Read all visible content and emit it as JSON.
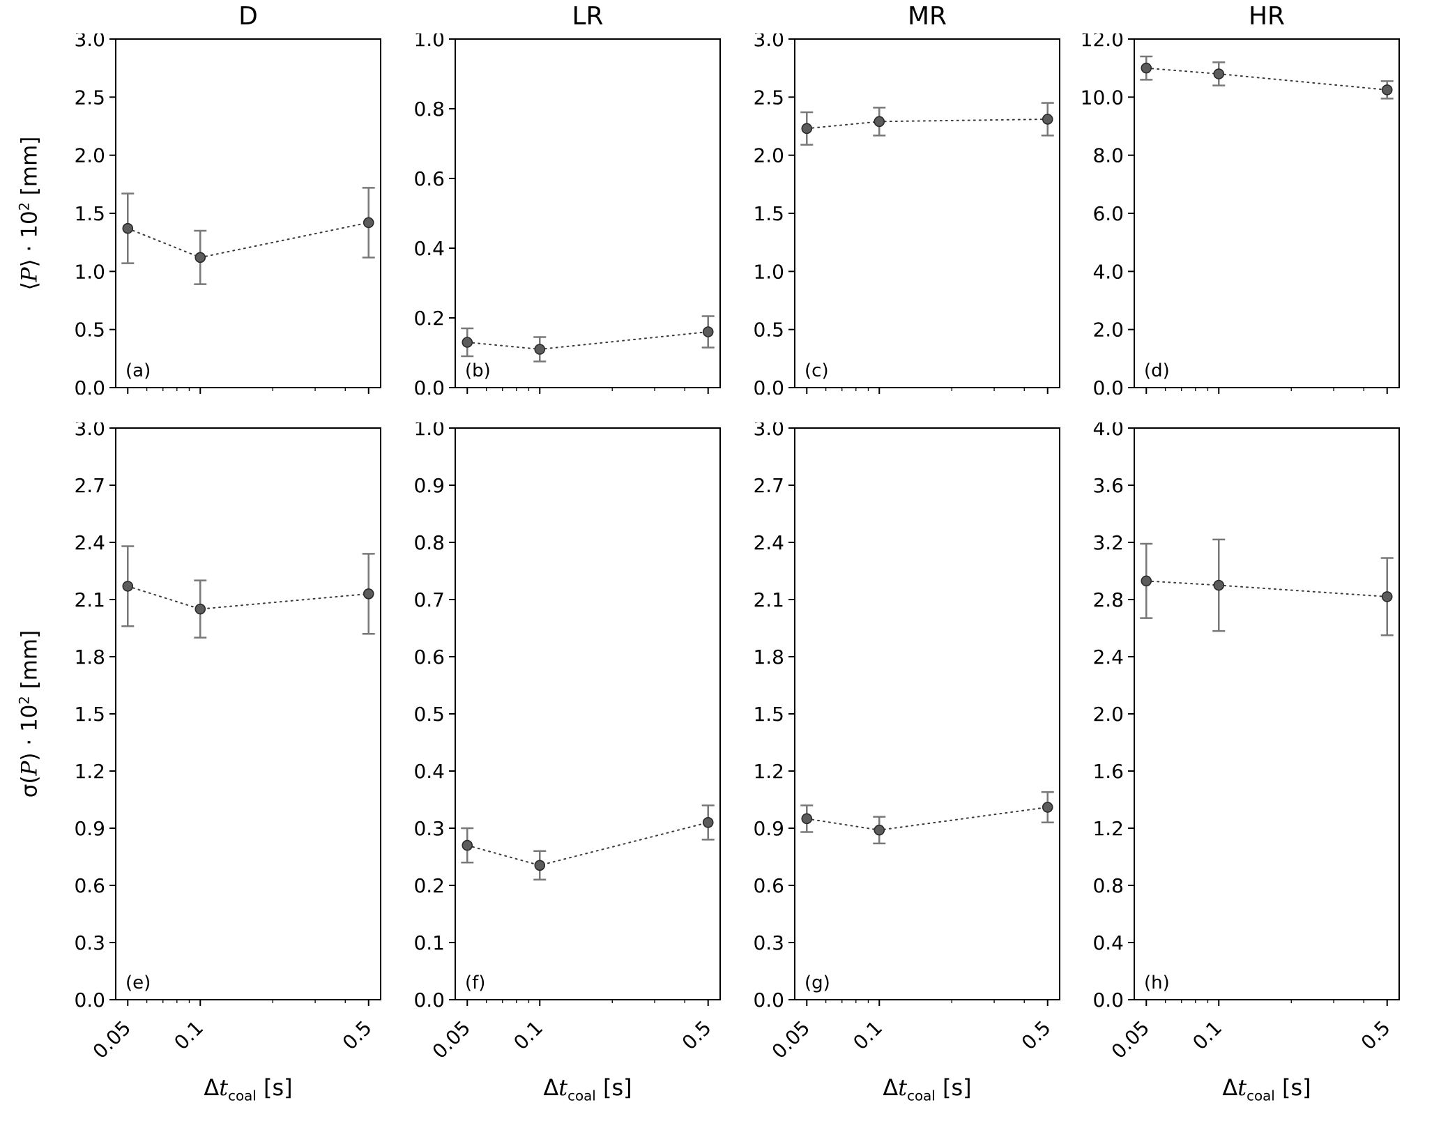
{
  "figure": {
    "columns": [
      "D",
      "LR",
      "MR",
      "HR"
    ],
    "ylabel_top": {
      "open": "⟨",
      "var": "P",
      "mid": "⟩ · 10",
      "sup": "2",
      "unit": " [mm]"
    },
    "ylabel_bottom": {
      "fn": "σ(",
      "var": "P",
      "mid": ") · 10",
      "sup": "2",
      "unit": " [mm]"
    },
    "xlabel": {
      "delta": "Δ",
      "var": "t",
      "sub": "coal",
      "unit": " [s]"
    }
  },
  "chart_data": [
    {
      "panel": "(a)",
      "title": "D",
      "row": "top",
      "type": "scatter",
      "xlabel": "Δt_coal [s]",
      "ylabel": "⟨P⟩·10² [mm]",
      "xscale": "log",
      "x": [
        0.05,
        0.1,
        0.5
      ],
      "xtick_labels": [
        "0.05",
        "0.1",
        "0.5"
      ],
      "y": [
        1.37,
        1.12,
        1.42
      ],
      "yerr": [
        0.3,
        0.23,
        0.3
      ],
      "ylim": [
        0,
        3.0
      ],
      "ytick_labels": [
        "0.0",
        "0.5",
        "1.0",
        "1.5",
        "2.0",
        "2.5",
        "3.0"
      ]
    },
    {
      "panel": "(b)",
      "title": "LR",
      "row": "top",
      "type": "scatter",
      "xlabel": "Δt_coal [s]",
      "ylabel": "⟨P⟩·10² [mm]",
      "xscale": "log",
      "x": [
        0.05,
        0.1,
        0.5
      ],
      "xtick_labels": [
        "0.05",
        "0.1",
        "0.5"
      ],
      "y": [
        0.13,
        0.11,
        0.16
      ],
      "yerr": [
        0.04,
        0.035,
        0.045
      ],
      "ylim": [
        0,
        1.0
      ],
      "ytick_labels": [
        "0.0",
        "0.2",
        "0.4",
        "0.6",
        "0.8",
        "1.0"
      ]
    },
    {
      "panel": "(c)",
      "title": "MR",
      "row": "top",
      "type": "scatter",
      "xlabel": "Δt_coal [s]",
      "ylabel": "⟨P⟩·10² [mm]",
      "xscale": "log",
      "x": [
        0.05,
        0.1,
        0.5
      ],
      "xtick_labels": [
        "0.05",
        "0.1",
        "0.5"
      ],
      "y": [
        2.23,
        2.29,
        2.31
      ],
      "yerr": [
        0.14,
        0.12,
        0.14
      ],
      "ylim": [
        0,
        3.0
      ],
      "ytick_labels": [
        "0.0",
        "0.5",
        "1.0",
        "1.5",
        "2.0",
        "2.5",
        "3.0"
      ]
    },
    {
      "panel": "(d)",
      "title": "HR",
      "row": "top",
      "type": "scatter",
      "xlabel": "Δt_coal [s]",
      "ylabel": "⟨P⟩·10² [mm]",
      "xscale": "log",
      "x": [
        0.05,
        0.1,
        0.5
      ],
      "xtick_labels": [
        "0.05",
        "0.1",
        "0.5"
      ],
      "y": [
        11.0,
        10.8,
        10.25
      ],
      "yerr": [
        0.4,
        0.4,
        0.3
      ],
      "ylim": [
        0,
        12.0
      ],
      "ytick_labels": [
        "0.0",
        "2.0",
        "4.0",
        "6.0",
        "8.0",
        "10.0",
        "12.0"
      ]
    },
    {
      "panel": "(e)",
      "title": "",
      "row": "bottom",
      "type": "scatter",
      "xlabel": "Δt_coal [s]",
      "ylabel": "σ(P)·10² [mm]",
      "xscale": "log",
      "x": [
        0.05,
        0.1,
        0.5
      ],
      "xtick_labels": [
        "0.05",
        "0.1",
        "0.5"
      ],
      "y": [
        2.17,
        2.05,
        2.13
      ],
      "yerr": [
        0.21,
        0.15,
        0.21
      ],
      "ylim": [
        0,
        3.0
      ],
      "ytick_labels": [
        "0.0",
        "0.3",
        "0.6",
        "0.9",
        "1.2",
        "1.5",
        "1.8",
        "2.1",
        "2.4",
        "2.7",
        "3.0"
      ]
    },
    {
      "panel": "(f)",
      "title": "",
      "row": "bottom",
      "type": "scatter",
      "xlabel": "Δt_coal [s]",
      "ylabel": "σ(P)·10² [mm]",
      "xscale": "log",
      "x": [
        0.05,
        0.1,
        0.5
      ],
      "xtick_labels": [
        "0.05",
        "0.1",
        "0.5"
      ],
      "y": [
        0.27,
        0.235,
        0.31
      ],
      "yerr": [
        0.03,
        0.025,
        0.03
      ],
      "ylim": [
        0,
        1.0
      ],
      "ytick_labels": [
        "0.0",
        "0.1",
        "0.2",
        "0.3",
        "0.4",
        "0.5",
        "0.6",
        "0.7",
        "0.8",
        "0.9",
        "1.0"
      ]
    },
    {
      "panel": "(g)",
      "title": "",
      "row": "bottom",
      "type": "scatter",
      "xlabel": "Δt_coal [s]",
      "ylabel": "σ(P)·10² [mm]",
      "xscale": "log",
      "x": [
        0.05,
        0.1,
        0.5
      ],
      "xtick_labels": [
        "0.05",
        "0.1",
        "0.5"
      ],
      "y": [
        0.95,
        0.89,
        1.01
      ],
      "yerr": [
        0.07,
        0.07,
        0.08
      ],
      "ylim": [
        0,
        3.0
      ],
      "ytick_labels": [
        "0.0",
        "0.3",
        "0.6",
        "0.9",
        "1.2",
        "1.5",
        "1.8",
        "2.1",
        "2.4",
        "2.7",
        "3.0"
      ]
    },
    {
      "panel": "(h)",
      "title": "",
      "row": "bottom",
      "type": "scatter",
      "xlabel": "Δt_coal [s]",
      "ylabel": "σ(P)·10² [mm]",
      "xscale": "log",
      "x": [
        0.05,
        0.1,
        0.5
      ],
      "xtick_labels": [
        "0.05",
        "0.1",
        "0.5"
      ],
      "y": [
        2.93,
        2.9,
        2.82
      ],
      "yerr": [
        0.26,
        0.32,
        0.27
      ],
      "ylim": [
        0,
        4.0
      ],
      "ytick_labels": [
        "0.0",
        "0.4",
        "0.8",
        "1.2",
        "1.6",
        "2.0",
        "2.4",
        "2.8",
        "3.2",
        "3.6",
        "4.0"
      ]
    }
  ]
}
